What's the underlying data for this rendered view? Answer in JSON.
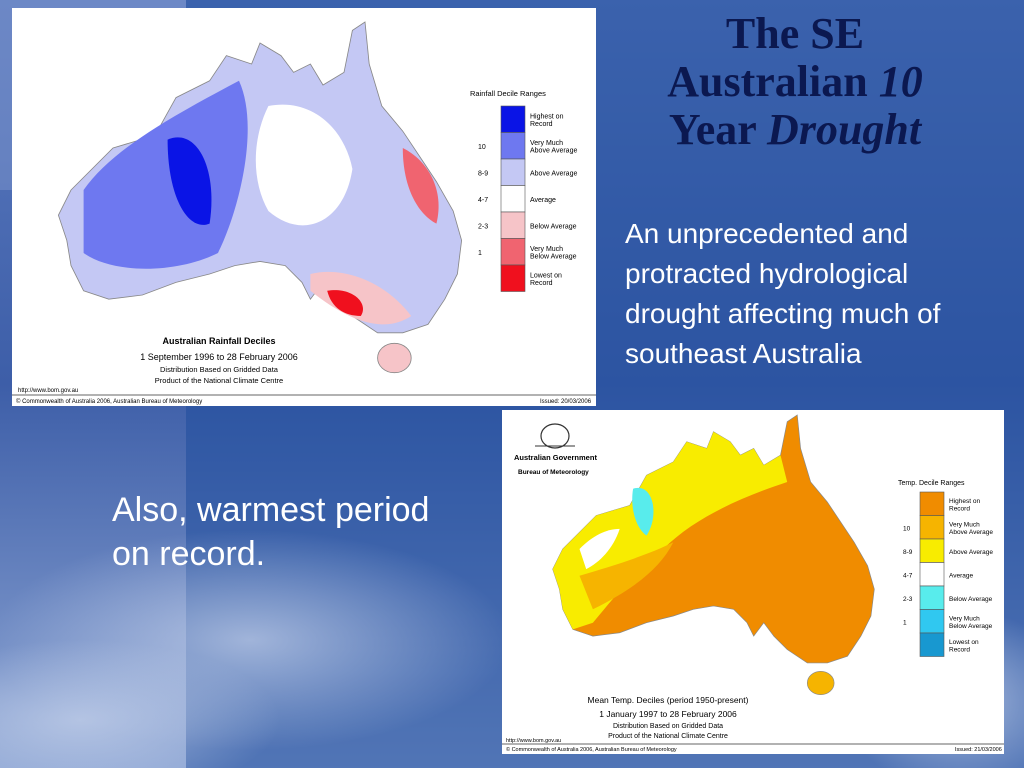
{
  "title": {
    "line1": "The SE",
    "line2": "Australian",
    "line2_italic": "10",
    "line3": "Year",
    "line3_italic": "Drought"
  },
  "body": "An unprecedented and protracted hydrological drought affecting much of southeast Australia",
  "note": "Also, warmest period on record.",
  "rainfall_map": {
    "legend_title": "Rainfall Decile Ranges",
    "legend": [
      {
        "label": "Highest on Record",
        "color": "#0a14e6"
      },
      {
        "range": "10",
        "label": "Very Much Above Average",
        "color": "#6e78f0"
      },
      {
        "range": "8-9",
        "label": "Above Average",
        "color": "#c4c8f4"
      },
      {
        "range": "4-7",
        "label": "Average",
        "color": "#ffffff"
      },
      {
        "range": "2-3",
        "label": "Below Average",
        "color": "#f6c4c8"
      },
      {
        "range": "1",
        "label": "Very Much Below Average",
        "color": "#f06470"
      },
      {
        "label": "Lowest on Record",
        "color": "#f0101e"
      }
    ],
    "caption": [
      "Australian Rainfall Deciles",
      "1 September 1996 to 28 February 2006",
      "Distribution Based on Gridded Data",
      "Product of the National Climate Centre"
    ],
    "url": "http://www.bom.gov.au",
    "copyright": "© Commonwealth of Australia 2006, Australian Bureau of Meteorology",
    "issued": "Issued: 20/03/2006"
  },
  "temp_map": {
    "agency": "Australian Government",
    "bureau": "Bureau of Meteorology",
    "legend_title": "Temp. Decile Ranges",
    "legend": [
      {
        "label": "Highest on Record",
        "color": "#f08c00"
      },
      {
        "range": "10",
        "label": "Very Much Above Average",
        "color": "#f6b400"
      },
      {
        "range": "8-9",
        "label": "Above Average",
        "color": "#f8ec00"
      },
      {
        "range": "4-7",
        "label": "Average",
        "color": "#ffffff"
      },
      {
        "range": "2-3",
        "label": "Below Average",
        "color": "#58ecec"
      },
      {
        "range": "1",
        "label": "Very Much Below Average",
        "color": "#30c8f0"
      },
      {
        "label": "Lowest on Record",
        "color": "#1898d0"
      }
    ],
    "caption": [
      "Mean Temp. Deciles (period 1950-present)",
      "1 January 1997 to 28 February 2006",
      "Distribution Based on Gridded Data",
      "Product of the National Climate Centre"
    ],
    "url": "http://www.bom.gov.au",
    "copyright": "© Commonwealth of Australia 2006, Australian Bureau of Meteorology",
    "issued": "Issued: 21/03/2006"
  }
}
